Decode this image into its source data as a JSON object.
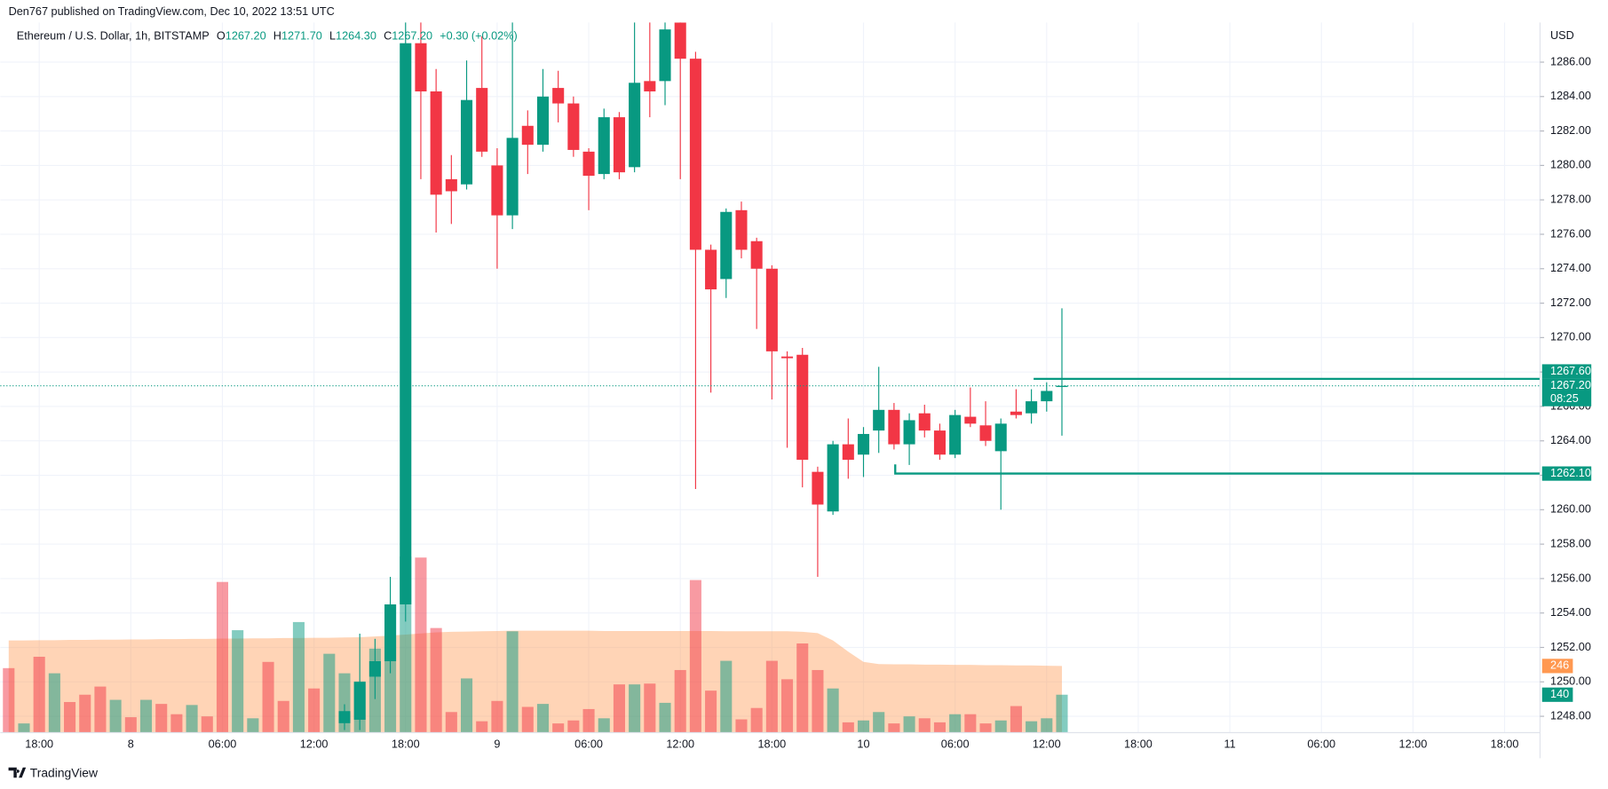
{
  "chart_data": {
    "type": "candlestick",
    "published": "Den767 published on TradingView.com, Dec 10, 2022 13:51 UTC",
    "title": "Ethereum / U.S. Dollar, 1h, BITSTAMP",
    "legend": {
      "open_label": "O",
      "open": {
        "value": 1267.2,
        "label": "1267.20"
      },
      "high_label": "H",
      "high": {
        "value": 1271.7,
        "label": "1271.70"
      },
      "low_label": "L",
      "low": {
        "value": 1264.3,
        "label": "1264.30"
      },
      "close_label": "C",
      "close": {
        "value": 1267.2,
        "label": "1267.20"
      },
      "change": "+0.30 (+0.02%)"
    },
    "currency": "USD",
    "brand": "TradingView",
    "categories": [
      null,
      null,
      "18:00",
      null,
      null,
      null,
      null,
      null,
      "8",
      null,
      null,
      null,
      null,
      null,
      "06:00",
      null,
      null,
      null,
      null,
      null,
      "12:00",
      null,
      null,
      null,
      null,
      null,
      "18:00",
      null,
      null,
      null,
      null,
      null,
      "9",
      null,
      null,
      null,
      null,
      null,
      "06:00",
      null,
      null,
      null,
      null,
      null,
      "12:00",
      null,
      null,
      null,
      null,
      null,
      "18:00",
      null,
      null,
      null,
      null,
      null,
      "10",
      null,
      null,
      null,
      null,
      null,
      "06:00",
      null,
      null,
      null,
      null,
      null,
      "12:00",
      null,
      null,
      null,
      null,
      null,
      "18:00",
      null,
      null,
      null,
      null,
      null,
      "11",
      null,
      null,
      null,
      null,
      null,
      "06:00",
      null,
      null,
      null,
      null,
      null,
      "12:00",
      null,
      null,
      null,
      null,
      null,
      "18:00",
      null,
      null
    ],
    "open": [
      null,
      null,
      null,
      null,
      null,
      null,
      null,
      null,
      null,
      null,
      null,
      null,
      null,
      null,
      null,
      null,
      null,
      null,
      null,
      null,
      null,
      null,
      1247.6,
      1247.8,
      1250.3,
      1251.2,
      1254.5,
      1287.1,
      1284.3,
      1279.2,
      1278.9,
      1284.5,
      1280.0,
      1277.1,
      1282.3,
      1281.2,
      1284.5,
      1283.6,
      1280.8,
      1279.5,
      1282.8,
      1279.9,
      1284.9,
      1284.9,
      1288.3,
      1286.2,
      1275.1,
      1273.4,
      1277.4,
      1275.6,
      1274.0,
      1268.9,
      1269.0,
      1262.2,
      1259.9,
      1263.8,
      1263.2,
      1264.6,
      1265.8,
      1263.8,
      1265.6,
      1264.6,
      1263.2,
      1265.4,
      1264.9,
      1263.4,
      1265.7,
      1265.6,
      1266.3,
      1267.2,
      null,
      null,
      null,
      null,
      null,
      null,
      null,
      null,
      null,
      null,
      null,
      null,
      null,
      null,
      null,
      null,
      null,
      null,
      null,
      null,
      null,
      null,
      null,
      null,
      null,
      null,
      null,
      null,
      null,
      null,
      null
    ],
    "high": [
      null,
      null,
      null,
      null,
      null,
      null,
      null,
      null,
      null,
      null,
      null,
      null,
      null,
      null,
      null,
      null,
      null,
      null,
      null,
      null,
      null,
      null,
      1248.7,
      1252.8,
      1252.5,
      1256.1,
      1290.0,
      1289.0,
      1285.6,
      1280.6,
      1286.1,
      1287.5,
      1281.0,
      1289.0,
      1283.2,
      1285.6,
      1285.5,
      1284.0,
      1281.0,
      1283.3,
      1283.1,
      1289.0,
      1289.0,
      1289.5,
      1289.5,
      1286.6,
      1275.4,
      1277.5,
      1277.9,
      1275.8,
      1274.2,
      1269.2,
      1269.4,
      1262.5,
      1264.0,
      1265.3,
      1264.8,
      1268.3,
      1266.2,
      1265.6,
      1266.1,
      1265.0,
      1265.8,
      1267.1,
      1266.3,
      1265.3,
      1267.0,
      1267.0,
      1267.4,
      1271.7,
      null,
      null,
      null,
      null,
      null,
      null,
      null,
      null,
      null,
      null,
      null,
      null,
      null,
      null,
      null,
      null,
      null,
      null,
      null,
      null,
      null,
      null,
      null,
      null,
      null,
      null,
      null,
      null,
      null,
      null,
      null
    ],
    "low": [
      null,
      null,
      null,
      null,
      null,
      null,
      null,
      null,
      null,
      null,
      null,
      null,
      null,
      null,
      null,
      null,
      null,
      null,
      null,
      null,
      null,
      null,
      1247.2,
      1247.2,
      1249.0,
      1250.5,
      1253.5,
      1279.2,
      1276.1,
      1276.6,
      1278.6,
      1280.5,
      1274.0,
      1276.3,
      1279.5,
      1280.8,
      1282.5,
      1280.5,
      1277.4,
      1279.2,
      1279.2,
      1279.6,
      1282.8,
      1283.5,
      1279.2,
      1261.2,
      1266.8,
      1272.3,
      1274.6,
      1270.5,
      1266.4,
      1263.6,
      1261.3,
      1256.1,
      1259.7,
      1261.8,
      1261.9,
      1263.3,
      1263.5,
      1262.6,
      1264.2,
      1262.9,
      1263.0,
      1264.8,
      1263.7,
      1260.0,
      1265.3,
      1265.0,
      1265.7,
      1264.3,
      null,
      null,
      null,
      null,
      null,
      null,
      null,
      null,
      null,
      null,
      null,
      null,
      null,
      null,
      null,
      null,
      null,
      null,
      null,
      null,
      null,
      null,
      null,
      null,
      null,
      null,
      null,
      null,
      null,
      null,
      null
    ],
    "close": [
      null,
      null,
      null,
      null,
      null,
      null,
      null,
      null,
      null,
      null,
      null,
      null,
      null,
      null,
      null,
      null,
      null,
      null,
      null,
      null,
      null,
      null,
      1248.3,
      1250.0,
      1251.2,
      1254.5,
      1287.1,
      1284.3,
      1278.3,
      1278.5,
      1283.8,
      1280.8,
      1277.1,
      1281.6,
      1281.2,
      1284.0,
      1283.6,
      1280.9,
      1279.4,
      1282.8,
      1279.6,
      1284.8,
      1284.3,
      1287.9,
      1286.2,
      1275.1,
      1272.8,
      1277.3,
      1275.1,
      1274.0,
      1269.2,
      1268.8,
      1262.9,
      1260.3,
      1263.8,
      1262.9,
      1264.4,
      1265.8,
      1263.8,
      1265.2,
      1264.6,
      1263.2,
      1265.5,
      1265.0,
      1264.0,
      1265.0,
      1265.5,
      1266.3,
      1266.9,
      1267.2,
      null,
      null,
      null,
      null,
      null,
      null,
      null,
      null,
      null,
      null,
      null,
      null,
      null,
      null,
      null,
      null,
      null,
      null,
      null,
      null,
      null,
      null,
      null,
      null,
      null,
      null,
      null,
      null,
      null,
      null,
      null
    ],
    "up_color": "#089981",
    "down_color": "#f23645",
    "volume": {
      "values": [
        238,
        34,
        280,
        219,
        113,
        140,
        170,
        121,
        57,
        121,
        106,
        68,
        102,
        60,
        556,
        378,
        53,
        261,
        117,
        408,
        163,
        291,
        219,
        189,
        310,
        473,
        650,
        646,
        386,
        76,
        200,
        42,
        117,
        374,
        95,
        106,
        34,
        45,
        87,
        53,
        178,
        178,
        181,
        110,
        231,
        563,
        155,
        265,
        49,
        91,
        265,
        197,
        329,
        231,
        163,
        38,
        45,
        76,
        34,
        60,
        53,
        38,
        68,
        68,
        34,
        45,
        98,
        42,
        53,
        140,
        null,
        null,
        null,
        null,
        null,
        null,
        null,
        null,
        null,
        null,
        null,
        null,
        null,
        null,
        null,
        null,
        null,
        null,
        null,
        null,
        null,
        null,
        null,
        null,
        null,
        null,
        null,
        null,
        null,
        null,
        null
      ],
      "colors": [
        "#f23645",
        "#089981",
        "#f23645",
        "#089981",
        "#f23645",
        "#f23645",
        "#f23645",
        "#089981",
        "#f23645",
        "#089981",
        "#f23645",
        "#f23645",
        "#089981",
        "#f23645",
        "#f23645",
        "#089981",
        "#089981",
        "#f23645",
        "#f23645",
        "#089981",
        "#f23645",
        "#089981",
        "#089981",
        "#089981",
        "#089981",
        "#089981",
        "#089981",
        "#f23645",
        "#f23645",
        "#f23645",
        "#089981",
        "#f23645",
        "#f23645",
        "#089981",
        "#f23645",
        "#089981",
        "#f23645",
        "#f23645",
        "#f23645",
        "#089981",
        "#f23645",
        "#089981",
        "#f23645",
        "#089981",
        "#f23645",
        "#f23645",
        "#f23645",
        "#089981",
        "#f23645",
        "#f23645",
        "#f23645",
        "#f23645",
        "#f23645",
        "#f23645",
        "#089981",
        "#f23645",
        "#089981",
        "#089981",
        "#f23645",
        "#089981",
        "#f23645",
        "#f23645",
        "#089981",
        "#f23645",
        "#f23645",
        "#089981",
        "#f23645",
        "#089981",
        "#089981",
        "#089981",
        null,
        null,
        null,
        null,
        null,
        null,
        null,
        null,
        null,
        null,
        null,
        null,
        null,
        null,
        null,
        null,
        null,
        null,
        null,
        null,
        null,
        null,
        null,
        null,
        null,
        null,
        null,
        null,
        null,
        null,
        null
      ],
      "ma": [
        340,
        340,
        341,
        341,
        342,
        342,
        343,
        343,
        344,
        344,
        345,
        345,
        346,
        346,
        347,
        347,
        348,
        348,
        349,
        349,
        350,
        350,
        351,
        352,
        355,
        358,
        362,
        366,
        370,
        372,
        373,
        374,
        375,
        376,
        376,
        376,
        376,
        376,
        376,
        375,
        375,
        375,
        375,
        375,
        375,
        375,
        375,
        374,
        374,
        374,
        374,
        374,
        372,
        367,
        340,
        299,
        261,
        253,
        252,
        252,
        251,
        251,
        250,
        250,
        249,
        249,
        248,
        248,
        247,
        246,
        null,
        null,
        null,
        null,
        null,
        null,
        null,
        null,
        null,
        null,
        null,
        null,
        null,
        null,
        null,
        null,
        null,
        null,
        null,
        null,
        null,
        null,
        null,
        null,
        null,
        null,
        null,
        null,
        null,
        null,
        null
      ],
      "ma_color": "#ff9850",
      "ylim": [
        0,
        2620
      ]
    },
    "ylim": [
      1247.05,
      1288.3
    ],
    "yticks": [
      {
        "value": 1248,
        "label": "1248.00"
      },
      {
        "value": 1250,
        "label": "1250.00"
      },
      {
        "value": 1252,
        "label": "1252.00"
      },
      {
        "value": 1254,
        "label": "1254.00"
      },
      {
        "value": 1256,
        "label": "1256.00"
      },
      {
        "value": 1258,
        "label": "1258.00"
      },
      {
        "value": 1260,
        "label": "1260.00"
      },
      {
        "value": 1262,
        "label": "1262.00"
      },
      {
        "value": 1264,
        "label": "1264.00"
      },
      {
        "value": 1266,
        "label": "1266.00"
      },
      {
        "value": 1268,
        "label": "1268.00"
      },
      {
        "value": 1270,
        "label": "1270.00"
      },
      {
        "value": 1272,
        "label": "1272.00"
      },
      {
        "value": 1274,
        "label": "1274.00"
      },
      {
        "value": 1276,
        "label": "1276.00"
      },
      {
        "value": 1278,
        "label": "1278.00"
      },
      {
        "value": 1280,
        "label": "1280.00"
      },
      {
        "value": 1282,
        "label": "1282.00"
      },
      {
        "value": 1284,
        "label": "1284.00"
      },
      {
        "value": 1286,
        "label": "1286.00"
      }
    ],
    "grid": true,
    "levels": [
      {
        "value": 1267.6,
        "label": "1267.60"
      },
      {
        "value": 1262.1,
        "label": "1262.10"
      }
    ],
    "last_price": {
      "value": 1267.2,
      "label": "1267.20"
    },
    "countdown": "08:25"
  }
}
